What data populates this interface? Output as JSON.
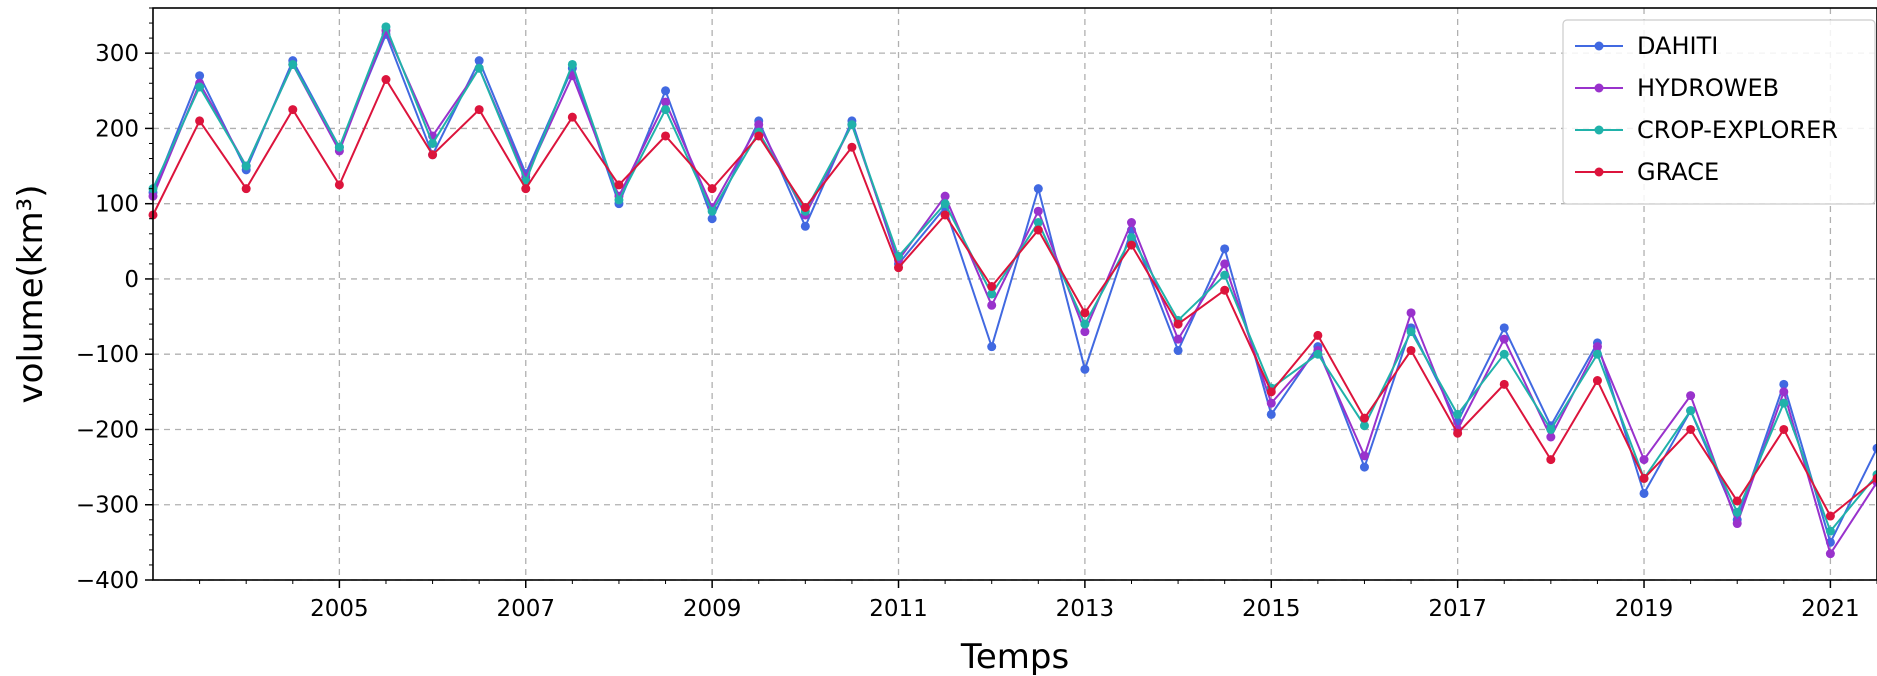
{
  "chart_data": {
    "type": "line",
    "title": "",
    "xlabel": "Temps",
    "ylabel": "volume(km³)",
    "xlim": [
      2003.0,
      2021.5
    ],
    "ylim": [
      -400,
      360
    ],
    "xticks": [
      2005,
      2007,
      2009,
      2011,
      2013,
      2015,
      2017,
      2019,
      2021
    ],
    "xtick_labels": [
      "2005",
      "2007",
      "2009",
      "2011",
      "2013",
      "2015",
      "2017",
      "2019",
      "2021"
    ],
    "yticks": [
      -400,
      -300,
      -200,
      -100,
      0,
      100,
      200,
      300
    ],
    "ytick_labels": [
      "−400",
      "−300",
      "−200",
      "−100",
      "0",
      "100",
      "200",
      "300"
    ],
    "grid": true,
    "legend_position": "top-right",
    "series": [
      {
        "name": "DAHITI",
        "color": "#4169e1",
        "x": [
          2003.0,
          2003.5,
          2004.0,
          2004.5,
          2005.0,
          2005.5,
          2006.0,
          2006.5,
          2007.0,
          2007.5,
          2008.0,
          2008.5,
          2009.0,
          2009.5,
          2010.0,
          2010.5,
          2011.0,
          2011.5,
          2012.0,
          2012.5,
          2013.0,
          2013.5,
          2014.0,
          2014.5,
          2015.0,
          2015.5,
          2016.0,
          2016.5,
          2017.0,
          2017.5,
          2018.0,
          2018.5,
          2019.0,
          2019.5,
          2020.0,
          2020.5,
          2021.0,
          2021.5
        ],
        "y": [
          115,
          270,
          145,
          290,
          175,
          325,
          165,
          290,
          140,
          280,
          100,
          250,
          80,
          210,
          70,
          210,
          20,
          95,
          -90,
          120,
          -120,
          65,
          -95,
          40,
          -180,
          -90,
          -250,
          -65,
          -190,
          -65,
          -195,
          -85,
          -285,
          -175,
          -320,
          -140,
          -350,
          -225
        ]
      },
      {
        "name": "HYDROWEB",
        "color": "#9932cc",
        "x": [
          2003.0,
          2003.5,
          2004.0,
          2004.5,
          2005.0,
          2005.5,
          2006.0,
          2006.5,
          2007.0,
          2007.5,
          2008.0,
          2008.5,
          2009.0,
          2009.5,
          2010.0,
          2010.5,
          2011.0,
          2011.5,
          2012.0,
          2012.5,
          2013.0,
          2013.5,
          2014.0,
          2014.5,
          2015.0,
          2015.5,
          2016.0,
          2016.5,
          2017.0,
          2017.5,
          2018.0,
          2018.5,
          2019.0,
          2019.5,
          2020.0,
          2020.5,
          2021.0,
          2021.5
        ],
        "y": [
          110,
          260,
          150,
          285,
          170,
          330,
          190,
          280,
          135,
          270,
          110,
          235,
          95,
          205,
          85,
          205,
          25,
          110,
          -35,
          90,
          -70,
          75,
          -80,
          20,
          -165,
          -95,
          -235,
          -45,
          -200,
          -80,
          -210,
          -90,
          -240,
          -155,
          -325,
          -150,
          -365,
          -270
        ]
      },
      {
        "name": "CROP-EXPLORER",
        "color": "#20b2aa",
        "x": [
          2003.0,
          2003.5,
          2004.0,
          2004.5,
          2005.0,
          2005.5,
          2006.0,
          2006.5,
          2007.0,
          2007.5,
          2008.0,
          2008.5,
          2009.0,
          2009.5,
          2010.0,
          2010.5,
          2011.0,
          2011.5,
          2012.0,
          2012.5,
          2013.0,
          2013.5,
          2014.0,
          2014.5,
          2015.0,
          2015.5,
          2016.0,
          2016.5,
          2017.0,
          2017.5,
          2018.0,
          2018.5,
          2019.0,
          2019.5,
          2020.0,
          2020.5,
          2021.0,
          2021.5
        ],
        "y": [
          120,
          255,
          150,
          285,
          175,
          335,
          180,
          280,
          130,
          285,
          105,
          225,
          90,
          195,
          90,
          205,
          30,
          100,
          -20,
          75,
          -60,
          55,
          -55,
          5,
          -145,
          -100,
          -195,
          -70,
          -180,
          -100,
          -200,
          -100,
          -265,
          -175,
          -310,
          -165,
          -335,
          -260
        ]
      },
      {
        "name": "GRACE",
        "color": "#dc143c",
        "x": [
          2003.0,
          2003.5,
          2004.0,
          2004.5,
          2005.0,
          2005.5,
          2006.0,
          2006.5,
          2007.0,
          2007.5,
          2008.0,
          2008.5,
          2009.0,
          2009.5,
          2010.0,
          2010.5,
          2011.0,
          2011.5,
          2012.0,
          2012.5,
          2013.0,
          2013.5,
          2014.0,
          2014.5,
          2015.0,
          2015.5,
          2016.0,
          2016.5,
          2017.0,
          2017.5,
          2018.0,
          2018.5,
          2019.0,
          2019.5,
          2020.0,
          2020.5,
          2021.0,
          2021.5
        ],
        "y": [
          85,
          210,
          120,
          225,
          125,
          265,
          165,
          225,
          120,
          215,
          125,
          190,
          120,
          190,
          95,
          175,
          15,
          85,
          -10,
          65,
          -45,
          45,
          -60,
          -15,
          -150,
          -75,
          -185,
          -95,
          -205,
          -140,
          -240,
          -135,
          -265,
          -200,
          -295,
          -200,
          -315,
          -265
        ]
      }
    ]
  }
}
